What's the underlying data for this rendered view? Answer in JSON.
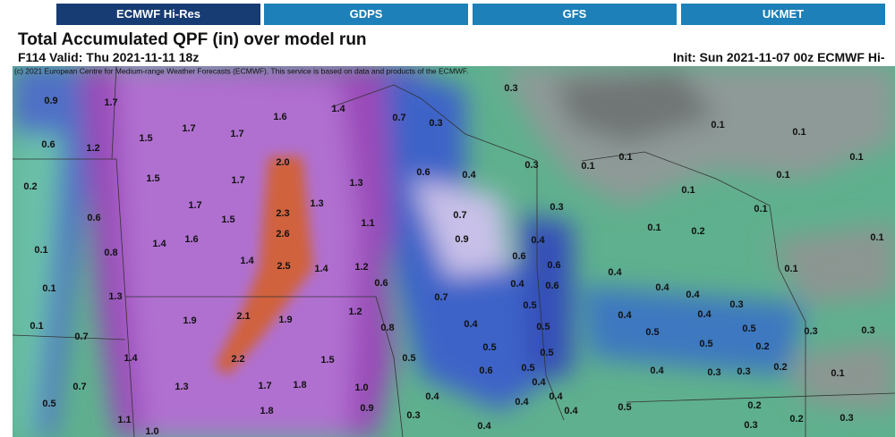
{
  "tabs": [
    "ECMWF Hi-Res",
    "GDPS",
    "GFS",
    "UKMET"
  ],
  "header": {
    "title": "Total Accumulated QPF (in) over model run",
    "valid": "F114 Valid: Thu 2021-11-11 18z",
    "init": "Init: Sun 2021-11-07 00z ECMWF Hi-",
    "copyright": "(c) 2021 European Centre for Medium-range Weather Forecasts (ECMWF). This service is based on data and products of the ECMWF."
  },
  "labels": [
    "0.9",
    "1.7",
    "1.6",
    "1.4",
    "0.7",
    "0.3",
    "0.3",
    "1.5",
    "1.7",
    "1.7",
    "0.6",
    "1.2",
    "2.0",
    "0.1",
    "0.1",
    "0.3",
    "0.1",
    "0.1",
    "0.1",
    "0.2",
    "1.5",
    "1.7",
    "1.3",
    "0.6",
    "0.4",
    "0.1",
    "1.7",
    "1.5",
    "2.3",
    "1.3",
    "0.6",
    "1.1",
    "0.7",
    "0.3",
    "0.1",
    "0.1",
    "0.1",
    "0.8",
    "1.4",
    "1.6",
    "2.6",
    "0.9",
    "0.4",
    "0.1",
    "0.2",
    "0.1",
    "1.4",
    "2.5",
    "1.4",
    "1.2",
    "0.6",
    "0.6",
    "0.1",
    "0.1",
    "0.6",
    "0.7",
    "0.4",
    "0.6",
    "0.4",
    "0.4",
    "0.4",
    "0.3",
    "1.3",
    "1.2",
    "0.5",
    "0.4",
    "0.4",
    "0.1",
    "1.9",
    "2.1",
    "1.9",
    "0.8",
    "0.4",
    "0.5",
    "0.5",
    "0.5",
    "0.3",
    "0.3",
    "0.7",
    "0.5",
    "0.5",
    "0.5",
    "0.2",
    "1.4",
    "2.2",
    "1.5",
    "0.5",
    "0.6",
    "0.5",
    "0.4",
    "0.3",
    "0.3",
    "0.2",
    "0.1",
    "0.7",
    "1.3",
    "1.7",
    "1.8",
    "1.0",
    "0.4",
    "0.4",
    "0.4",
    "0.4",
    "0.5",
    "1.1",
    "1.8",
    "0.9",
    "0.3",
    "0.4",
    "0.5",
    "0.2",
    "0.3",
    "0.2",
    "1.0",
    "0.4",
    "0.3"
  ]
}
